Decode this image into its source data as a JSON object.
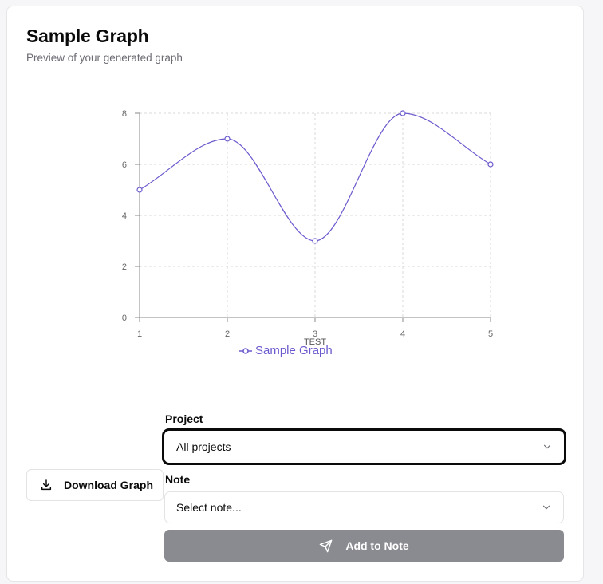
{
  "header": {
    "title": "Sample Graph",
    "subtitle": "Preview of your generated graph"
  },
  "chart_data": {
    "type": "line",
    "title": "",
    "xlabel": "TEST",
    "ylabel": "",
    "x": [
      1,
      2,
      3,
      4,
      5
    ],
    "xticks": [
      "1",
      "2",
      "3",
      "4",
      "5"
    ],
    "yticks": [
      "0",
      "2",
      "4",
      "6",
      "8"
    ],
    "ylim": [
      0,
      8
    ],
    "xlim": [
      1,
      5
    ],
    "grid": true,
    "smooth": true,
    "legend_position": "bottom",
    "series": [
      {
        "name": "Sample Graph",
        "values": [
          5,
          7,
          3,
          8,
          6
        ],
        "color": "#6a5acd"
      }
    ]
  },
  "actions": {
    "download_label": "Download Graph",
    "add_to_note_label": "Add to Note"
  },
  "project": {
    "label": "Project",
    "value": "All projects"
  },
  "note": {
    "label": "Note",
    "placeholder": "Select note..."
  },
  "icons": {
    "download": "download-icon",
    "chevron": "chevron-down-icon",
    "send": "send-icon"
  },
  "colors": {
    "accent": "#6a5acd",
    "disabled_button": "#8a8b91"
  }
}
